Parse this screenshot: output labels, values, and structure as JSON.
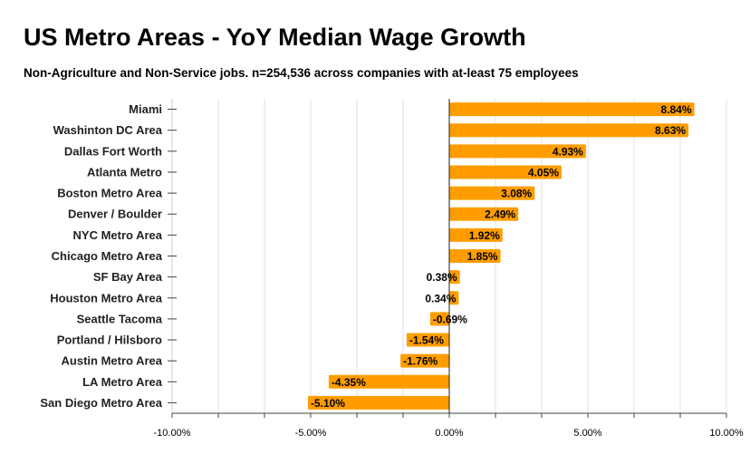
{
  "title": "US Metro Areas - YoY Median Wage Growth",
  "subtitle": "Non-Agriculture and Non-Service jobs. n=254,536 across companies with at-least 75 employees",
  "chart_data": {
    "type": "bar",
    "orientation": "horizontal",
    "title": "US Metro Areas - YoY Median Wage Growth",
    "subtitle": "Non-Agriculture and Non-Service jobs. n=254,536 across companies with at-least 75 employees",
    "xlabel": "",
    "ylabel": "",
    "categories": [
      "Miami",
      "Washinton DC Area",
      "Dallas Fort Worth",
      "Atlanta Metro",
      "Boston Metro Area",
      "Denver / Boulder",
      "NYC Metro Area",
      "Chicago Metro Area",
      "SF Bay Area",
      "Houston Metro Area",
      "Seattle Tacoma",
      "Portland / Hilsboro",
      "Austin Metro Area",
      "LA  Metro Area",
      "San Diego Metro Area"
    ],
    "values": [
      8.84,
      8.63,
      4.93,
      4.05,
      3.08,
      2.49,
      1.92,
      1.85,
      0.38,
      0.34,
      -0.69,
      -1.54,
      -1.76,
      -4.35,
      -5.1
    ],
    "value_labels": [
      "8.84%",
      "8.63%",
      "4.93%",
      "4.05%",
      "3.08%",
      "2.49%",
      "1.92%",
      "1.85%",
      "0.38%",
      "0.34%",
      "-0.69%",
      "-1.54%",
      "-1.76%",
      "-4.35%",
      "-5.10%"
    ],
    "xlim": [
      -10,
      10
    ],
    "xticks": [
      -10,
      -5,
      0,
      5,
      10
    ],
    "xtick_labels": [
      "-10.00%",
      "-5.00%",
      "0.00%",
      "5.00%",
      "10.00%"
    ],
    "grid": true,
    "bar_color": "#ff9d00",
    "legend": "none"
  }
}
